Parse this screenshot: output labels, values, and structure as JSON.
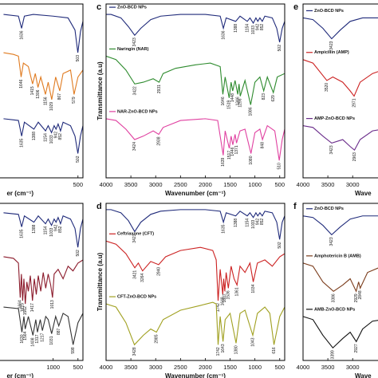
{
  "chart_data": [
    {
      "type": "line",
      "xlabel": "er (cm⁻¹)",
      "xlim": [
        4000,
        400
      ],
      "xticks": [
        500
      ],
      "ylim": [
        0,
        100
      ],
      "series": [
        {
          "color": "#1f2a7a",
          "x": [
            2000,
            1700,
            1636,
            1580,
            1400,
            1000,
            700,
            560,
            503,
            450,
            400
          ],
          "values": [
            94,
            93,
            86,
            93,
            94,
            93,
            92,
            85,
            72,
            84,
            90
          ],
          "peaks": [
            1636,
            503
          ]
        },
        {
          "color": "#e07b20",
          "x": [
            2000,
            1800,
            1700,
            1646,
            1600,
            1500,
            1415,
            1360,
            1306,
            1250,
            1156,
            1100,
            1029,
            950,
            867,
            800,
            650,
            579,
            500,
            400
          ],
          "values": [
            72,
            71,
            70,
            58,
            66,
            64,
            54,
            60,
            52,
            58,
            48,
            55,
            45,
            58,
            50,
            60,
            62,
            48,
            58,
            62
          ],
          "peaks": [
            1646,
            1415,
            1306,
            1156,
            1029,
            867,
            579
          ]
        },
        {
          "color": "#1f2a7a",
          "x": [
            2000,
            1700,
            1635,
            1580,
            1388,
            1300,
            1154,
            1100,
            1033,
            980,
            942,
            900,
            852,
            800,
            650,
            560,
            502,
            450,
            400
          ],
          "values": [
            34,
            33,
            24,
            32,
            28,
            32,
            27,
            30,
            26,
            30,
            28,
            31,
            27,
            32,
            30,
            24,
            14,
            24,
            30
          ],
          "peaks": [
            1635,
            1388,
            1154,
            1033,
            942,
            852,
            502
          ]
        }
      ]
    },
    {
      "type": "line",
      "label": "c",
      "xlabel": "Wavenumber (cm⁻¹)",
      "ylabel": "Transmittance (a.u)",
      "xlim": [
        4000,
        400
      ],
      "xticks": [
        4000,
        3500,
        3000,
        2500,
        2000,
        1500,
        1000,
        500
      ],
      "ylim": [
        0,
        100
      ],
      "series": [
        {
          "name": "ZnO-BCD NPs",
          "color": "#1f2a7a",
          "x": [
            4000,
            3900,
            3700,
            3550,
            3423,
            3300,
            3100,
            2900,
            2500,
            2000,
            1700,
            1636,
            1580,
            1388,
            1300,
            1154,
            1100,
            1033,
            980,
            942,
            900,
            852,
            800,
            650,
            560,
            502,
            450,
            400
          ],
          "values": [
            94,
            94,
            92,
            87,
            82,
            86,
            91,
            93,
            94,
            94,
            93,
            86,
            92,
            90,
            93,
            90,
            92,
            89,
            92,
            90,
            92,
            90,
            93,
            92,
            86,
            78,
            86,
            90
          ],
          "peaks": [
            3423,
            1636,
            1388,
            1154,
            1033,
            942,
            852,
            502
          ]
        },
        {
          "name": "Naringin (NAR)",
          "color": "#2e8b2e",
          "x": [
            4000,
            3800,
            3600,
            3422,
            3250,
            3050,
            2931,
            2850,
            2600,
            2200,
            1900,
            1700,
            1646,
            1600,
            1519,
            1480,
            1448,
            1400,
            1346,
            1320,
            1296,
            1200,
            1086,
            1000,
            900,
            823,
            750,
            629,
            550,
            400
          ],
          "values": [
            70,
            68,
            62,
            54,
            55,
            57,
            55,
            60,
            63,
            65,
            66,
            64,
            48,
            58,
            46,
            55,
            50,
            56,
            48,
            54,
            47,
            56,
            42,
            55,
            58,
            50,
            58,
            49,
            58,
            60
          ],
          "peaks": [
            3422,
            2931,
            1646,
            1519,
            1448,
            1346,
            1296,
            1086,
            823,
            629
          ]
        },
        {
          "name": "NAR-ZnO-BCD NPs",
          "color": "#e040a0",
          "x": [
            4000,
            3800,
            3600,
            3424,
            3250,
            3050,
            2938,
            2850,
            2500,
            2000,
            1750,
            1639,
            1600,
            1517,
            1480,
            1446,
            1400,
            1371,
            1300,
            1200,
            1080,
            1000,
            900,
            848,
            750,
            600,
            510,
            450,
            400
          ],
          "values": [
            34,
            33,
            28,
            22,
            24,
            27,
            25,
            29,
            33,
            34,
            33,
            13,
            27,
            17,
            24,
            19,
            25,
            20,
            27,
            28,
            14,
            26,
            28,
            22,
            30,
            27,
            10,
            22,
            28
          ],
          "peaks": [
            3424,
            2938,
            1639,
            1517,
            1446,
            1371,
            1080,
            848,
            510
          ]
        }
      ]
    },
    {
      "type": "line",
      "label": "e",
      "xlabel": "Wave",
      "xlim": [
        4000,
        400
      ],
      "xticks": [
        4000,
        3500,
        3000
      ],
      "ylim": [
        0,
        100
      ],
      "series": [
        {
          "name": "ZnO-BCD NPs",
          "color": "#1f2a7a",
          "x": [
            4000,
            3800,
            3600,
            3423,
            3250,
            3050,
            2800,
            2400
          ],
          "values": [
            92,
            91,
            86,
            80,
            85,
            90,
            92,
            92
          ],
          "peaks": [
            3423
          ]
        },
        {
          "name": "Ampicillin (AMP)",
          "color": "#cc2222",
          "x": [
            4000,
            3800,
            3520,
            3400,
            3200,
            3050,
            2971,
            2850,
            2600,
            2400
          ],
          "values": [
            68,
            66,
            56,
            58,
            55,
            50,
            47,
            55,
            60,
            62
          ],
          "peaks": [
            3520,
            2971
          ]
        },
        {
          "name": "AMP-ZnO-BCD NPs",
          "color": "#6a2c8a",
          "x": [
            4000,
            3800,
            3600,
            3423,
            3200,
            3050,
            2963,
            2850,
            2600,
            2400
          ],
          "values": [
            30,
            29,
            24,
            20,
            22,
            18,
            16,
            22,
            27,
            28
          ],
          "peaks": [
            3423,
            2963
          ]
        }
      ]
    },
    {
      "type": "line",
      "xlabel": "er (cm⁻¹)",
      "xlim": [
        4000,
        400
      ],
      "xticks": [
        1000,
        500
      ],
      "ylim": [
        0,
        100
      ],
      "series": [
        {
          "color": "#1f2a7a",
          "x": [
            2000,
            1700,
            1635,
            1580,
            1388,
            1300,
            1154,
            1100,
            1033,
            980,
            942,
            900,
            852,
            800,
            650,
            560,
            502,
            450,
            400
          ],
          "values": [
            94,
            93,
            85,
            92,
            88,
            92,
            87,
            90,
            86,
            90,
            88,
            91,
            87,
            92,
            90,
            84,
            72,
            84,
            90
          ],
          "peaks": [
            1635,
            1388,
            1154,
            1033,
            942,
            852,
            502
          ]
        },
        {
          "color": "#8b1a2b",
          "x": [
            2000,
            1800,
            1700,
            1664,
            1640,
            1615,
            1590,
            1562,
            1530,
            1500,
            1460,
            1417,
            1380,
            1340,
            1300,
            1250,
            1200,
            1150,
            1100,
            1050,
            1013,
            980,
            900,
            800,
            700,
            600,
            500,
            400
          ],
          "values": [
            66,
            65,
            62,
            40,
            55,
            38,
            52,
            36,
            50,
            44,
            54,
            38,
            52,
            42,
            54,
            44,
            56,
            46,
            55,
            48,
            40,
            55,
            58,
            52,
            60,
            57,
            62,
            64
          ],
          "peaks": [
            1664,
            1615,
            1562,
            1417,
            1013
          ]
        },
        {
          "color": "#333333",
          "x": [
            2000,
            1700,
            1630,
            1590,
            1564,
            1500,
            1408,
            1350,
            1317,
            1260,
            1217,
            1150,
            1100,
            1031,
            950,
            887,
            800,
            700,
            598,
            500,
            400
          ],
          "values": [
            34,
            33,
            18,
            28,
            20,
            28,
            16,
            26,
            18,
            26,
            19,
            28,
            26,
            17,
            28,
            22,
            30,
            28,
            10,
            24,
            30
          ],
          "peaks": [
            1630,
            1564,
            1408,
            1317,
            1217,
            1031,
            887,
            598
          ]
        }
      ]
    },
    {
      "type": "line",
      "label": "d",
      "xlabel": "Wavenumber (cm⁻¹)",
      "ylabel": "Transmittance (a.u)",
      "xlim": [
        4000,
        400
      ],
      "xticks": [
        4000,
        3500,
        3000,
        2500,
        2000,
        1500,
        1000,
        500
      ],
      "ylim": [
        0,
        100
      ],
      "series": [
        {
          "name": "ZnO-BCD NPs",
          "color": "#1f2a7a",
          "x": [
            4000,
            3900,
            3700,
            3550,
            3423,
            3300,
            3100,
            2900,
            2500,
            2000,
            1700,
            1635,
            1580,
            1388,
            1300,
            1154,
            1100,
            1033,
            980,
            942,
            900,
            852,
            800,
            650,
            560,
            502,
            450,
            400
          ],
          "values": [
            96,
            96,
            94,
            89,
            82,
            88,
            93,
            95,
            96,
            96,
            95,
            88,
            94,
            92,
            95,
            92,
            94,
            91,
            94,
            92,
            94,
            92,
            95,
            94,
            88,
            77,
            88,
            92
          ],
          "peaks": [
            3423,
            1635,
            1388,
            1154,
            1033,
            942,
            852,
            502
          ]
        },
        {
          "name": "Ceftriaxone (CFT)",
          "color": "#cc2222",
          "x": [
            4000,
            3800,
            3600,
            3421,
            3350,
            3264,
            3100,
            2940,
            2800,
            2500,
            2100,
            1850,
            1780,
            1742,
            1700,
            1648,
            1630,
            1607,
            1580,
            1536,
            1480,
            1420,
            1361,
            1300,
            1200,
            1100,
            1034,
            950,
            800,
            650,
            500,
            400
          ],
          "values": [
            76,
            74,
            68,
            59,
            62,
            57,
            63,
            61,
            66,
            70,
            72,
            70,
            64,
            38,
            58,
            42,
            52,
            44,
            56,
            46,
            60,
            52,
            48,
            60,
            56,
            62,
            50,
            62,
            64,
            60,
            66,
            68
          ],
          "peaks": [
            3421,
            3264,
            2940,
            1742,
            1648,
            1607,
            1536,
            1361,
            1034
          ]
        },
        {
          "name": "CFT-ZnO-BCD NPs",
          "color": "#a0a020",
          "x": [
            4000,
            3800,
            3600,
            3428,
            3250,
            3100,
            2985,
            2850,
            2500,
            2100,
            1850,
            1780,
            1742,
            1700,
            1643,
            1600,
            1500,
            1380,
            1300,
            1200,
            1043,
            950,
            800,
            700,
            616,
            500,
            400
          ],
          "values": [
            36,
            34,
            24,
            10,
            16,
            20,
            18,
            26,
            32,
            35,
            37,
            36,
            10,
            28,
            12,
            26,
            30,
            11,
            30,
            32,
            16,
            30,
            34,
            30,
            10,
            28,
            34
          ],
          "peaks": [
            3428,
            2985,
            1742,
            1643,
            1380,
            1043,
            616
          ]
        }
      ]
    },
    {
      "type": "line",
      "label": "f",
      "xlabel": "Wave",
      "xlim": [
        4000,
        400
      ],
      "xticks": [
        4000,
        3500,
        3000
      ],
      "ylim": [
        0,
        100
      ],
      "series": [
        {
          "name": "ZnO-BCD NPs",
          "color": "#1f2a7a",
          "x": [
            4000,
            3800,
            3600,
            3423,
            3250,
            3050,
            2800,
            2400
          ],
          "values": [
            92,
            91,
            86,
            80,
            85,
            90,
            92,
            92
          ],
          "peaks": [
            3423
          ]
        },
        {
          "name": "Amphotericin B (AMB)",
          "color": "#7a3b1a",
          "x": [
            4000,
            3800,
            3600,
            3386,
            3200,
            3050,
            2929,
            2880,
            2848,
            2700,
            2400
          ],
          "values": [
            62,
            60,
            50,
            44,
            48,
            52,
            44,
            50,
            46,
            56,
            60
          ],
          "peaks": [
            3386,
            2929,
            2848
          ]
        },
        {
          "name": "AMB-ZnO-BCD NPs",
          "color": "#111111",
          "x": [
            4000,
            3800,
            3600,
            3399,
            3200,
            3050,
            2927,
            2800,
            2600,
            2400
          ],
          "values": [
            28,
            26,
            16,
            8,
            14,
            18,
            12,
            20,
            25,
            26
          ],
          "peaks": [
            3399,
            2927
          ]
        }
      ]
    }
  ]
}
